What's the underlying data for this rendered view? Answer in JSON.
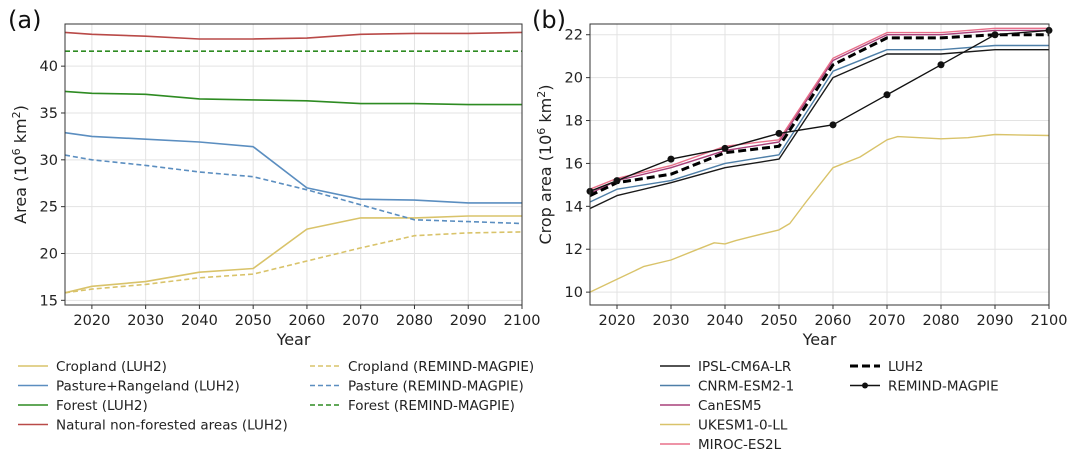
{
  "chart_data": [
    {
      "panel_label": "(a)",
      "type": "line",
      "xlabel": "Year",
      "ylabel_base": "Area (10",
      "ylabel_exp": "6",
      "ylabel_unit": " km",
      "ylabel_exp2": "2",
      "ylabel_close": ")",
      "xlim": [
        2015,
        2100
      ],
      "ylim": [
        14.5,
        44.5
      ],
      "xticks": [
        2020,
        2030,
        2040,
        2050,
        2060,
        2070,
        2080,
        2090,
        2100
      ],
      "yticks": [
        15,
        20,
        25,
        30,
        35,
        40
      ],
      "grid": true,
      "legend_position": "below",
      "series": [
        {
          "name": "Cropland (LUH2)",
          "color": "#d9c36a",
          "dash": "solid",
          "x": [
            2015,
            2020,
            2030,
            2040,
            2050,
            2060,
            2070,
            2080,
            2090,
            2100
          ],
          "y": [
            15.8,
            16.5,
            17.0,
            18.0,
            18.4,
            22.6,
            23.8,
            23.8,
            24.0,
            24.0
          ]
        },
        {
          "name": "Pasture+Rangeland (LUH2)",
          "color": "#5b8ec0",
          "dash": "solid",
          "x": [
            2015,
            2020,
            2030,
            2040,
            2050,
            2060,
            2070,
            2080,
            2090,
            2100
          ],
          "y": [
            32.9,
            32.5,
            32.2,
            31.9,
            31.4,
            27.0,
            25.8,
            25.7,
            25.4,
            25.4
          ]
        },
        {
          "name": "Forest (LUH2)",
          "color": "#2e8b22",
          "dash": "solid",
          "x": [
            2015,
            2020,
            2030,
            2040,
            2050,
            2060,
            2070,
            2080,
            2090,
            2100
          ],
          "y": [
            37.3,
            37.1,
            37.0,
            36.5,
            36.4,
            36.3,
            36.0,
            36.0,
            35.9,
            35.9
          ]
        },
        {
          "name": "Natural non-forested areas (LUH2)",
          "color": "#b94a48",
          "dash": "solid",
          "x": [
            2015,
            2020,
            2030,
            2040,
            2050,
            2060,
            2070,
            2080,
            2090,
            2100
          ],
          "y": [
            43.6,
            43.4,
            43.2,
            42.9,
            42.9,
            43.0,
            43.4,
            43.5,
            43.5,
            43.6
          ]
        },
        {
          "name": "Cropland (REMIND-MAGPIE)",
          "color": "#d9c36a",
          "dash": "dashed",
          "x": [
            2015,
            2020,
            2030,
            2040,
            2050,
            2060,
            2070,
            2080,
            2090,
            2100
          ],
          "y": [
            15.8,
            16.2,
            16.7,
            17.4,
            17.8,
            19.2,
            20.6,
            21.9,
            22.2,
            22.3
          ]
        },
        {
          "name": "Pasture (REMIND-MAGPIE)",
          "color": "#5b8ec0",
          "dash": "dashed",
          "x": [
            2015,
            2020,
            2030,
            2040,
            2050,
            2060,
            2070,
            2080,
            2090,
            2100
          ],
          "y": [
            30.5,
            30.0,
            29.4,
            28.7,
            28.2,
            26.8,
            25.2,
            23.6,
            23.4,
            23.2
          ]
        },
        {
          "name": "Forest (REMIND-MAGPIE)",
          "color": "#2e8b22",
          "dash": "dashed",
          "x": [
            2015,
            2100
          ],
          "y": [
            41.6,
            41.6
          ]
        }
      ]
    },
    {
      "panel_label": "(b)",
      "type": "line",
      "xlabel": "Year",
      "ylabel_base": "Crop area (10",
      "ylabel_exp": "6",
      "ylabel_unit": " km",
      "ylabel_exp2": "2",
      "ylabel_close": ")",
      "xlim": [
        2015,
        2100
      ],
      "ylim": [
        9.4,
        22.5
      ],
      "xticks": [
        2020,
        2030,
        2040,
        2050,
        2060,
        2070,
        2080,
        2090,
        2100
      ],
      "yticks": [
        10,
        12,
        14,
        16,
        18,
        20,
        22
      ],
      "grid": true,
      "legend_position": "below",
      "series": [
        {
          "name": "IPSL-CM6A-LR",
          "color": "#1a1a1a",
          "dash": "solid",
          "width": 1.4,
          "x": [
            2015,
            2020,
            2030,
            2040,
            2050,
            2060,
            2070,
            2080,
            2090,
            2100
          ],
          "y": [
            13.9,
            14.5,
            15.1,
            15.8,
            16.2,
            20.0,
            21.1,
            21.1,
            21.3,
            21.3
          ]
        },
        {
          "name": "CNRM-ESM2-1",
          "color": "#4e7fa8",
          "dash": "solid",
          "width": 1.4,
          "x": [
            2015,
            2020,
            2030,
            2040,
            2050,
            2060,
            2070,
            2080,
            2090,
            2100
          ],
          "y": [
            14.2,
            14.8,
            15.2,
            16.0,
            16.4,
            20.3,
            21.3,
            21.3,
            21.5,
            21.5
          ]
        },
        {
          "name": "CanESM5",
          "color": "#a8407a",
          "dash": "solid",
          "width": 1.4,
          "x": [
            2015,
            2020,
            2030,
            2040,
            2050,
            2060,
            2070,
            2080,
            2090,
            2100
          ],
          "y": [
            14.6,
            15.2,
            15.8,
            16.6,
            17.0,
            20.8,
            22.0,
            22.0,
            22.2,
            22.2
          ]
        },
        {
          "name": "UKESM1-0-LL",
          "color": "#d9c36a",
          "dash": "solid",
          "width": 1.4,
          "x": [
            2015,
            2020,
            2025,
            2030,
            2035,
            2038,
            2040,
            2042,
            2045,
            2050,
            2052,
            2055,
            2060,
            2065,
            2070,
            2072,
            2080,
            2085,
            2090,
            2100
          ],
          "y": [
            10.0,
            10.6,
            11.2,
            11.5,
            12.0,
            12.3,
            12.25,
            12.4,
            12.6,
            12.9,
            13.2,
            14.2,
            15.8,
            16.3,
            17.1,
            17.25,
            17.15,
            17.2,
            17.35,
            17.3
          ]
        },
        {
          "name": "MIROC-ES2L",
          "color": "#e8708a",
          "dash": "solid",
          "width": 1.4,
          "x": [
            2015,
            2020,
            2030,
            2040,
            2050,
            2060,
            2070,
            2080,
            2090,
            2100
          ],
          "y": [
            14.8,
            15.3,
            15.9,
            16.8,
            17.1,
            20.9,
            22.1,
            22.1,
            22.3,
            22.3
          ]
        },
        {
          "name": "LUH2",
          "color": "#000000",
          "dash": "dashed",
          "width": 3,
          "x": [
            2015,
            2020,
            2030,
            2040,
            2050,
            2060,
            2070,
            2080,
            2090,
            2100
          ],
          "y": [
            14.5,
            15.1,
            15.5,
            16.5,
            16.8,
            20.6,
            21.85,
            21.85,
            22.0,
            22.0
          ]
        },
        {
          "name": "REMIND-MAGPIE",
          "color": "#111111",
          "dash": "solid",
          "width": 1.4,
          "markers": true,
          "x": [
            2015,
            2020,
            2030,
            2040,
            2050,
            2060,
            2070,
            2080,
            2090,
            2100
          ],
          "y": [
            14.7,
            15.2,
            16.2,
            16.7,
            17.4,
            17.8,
            19.2,
            20.6,
            22.0,
            22.2
          ]
        }
      ]
    }
  ]
}
